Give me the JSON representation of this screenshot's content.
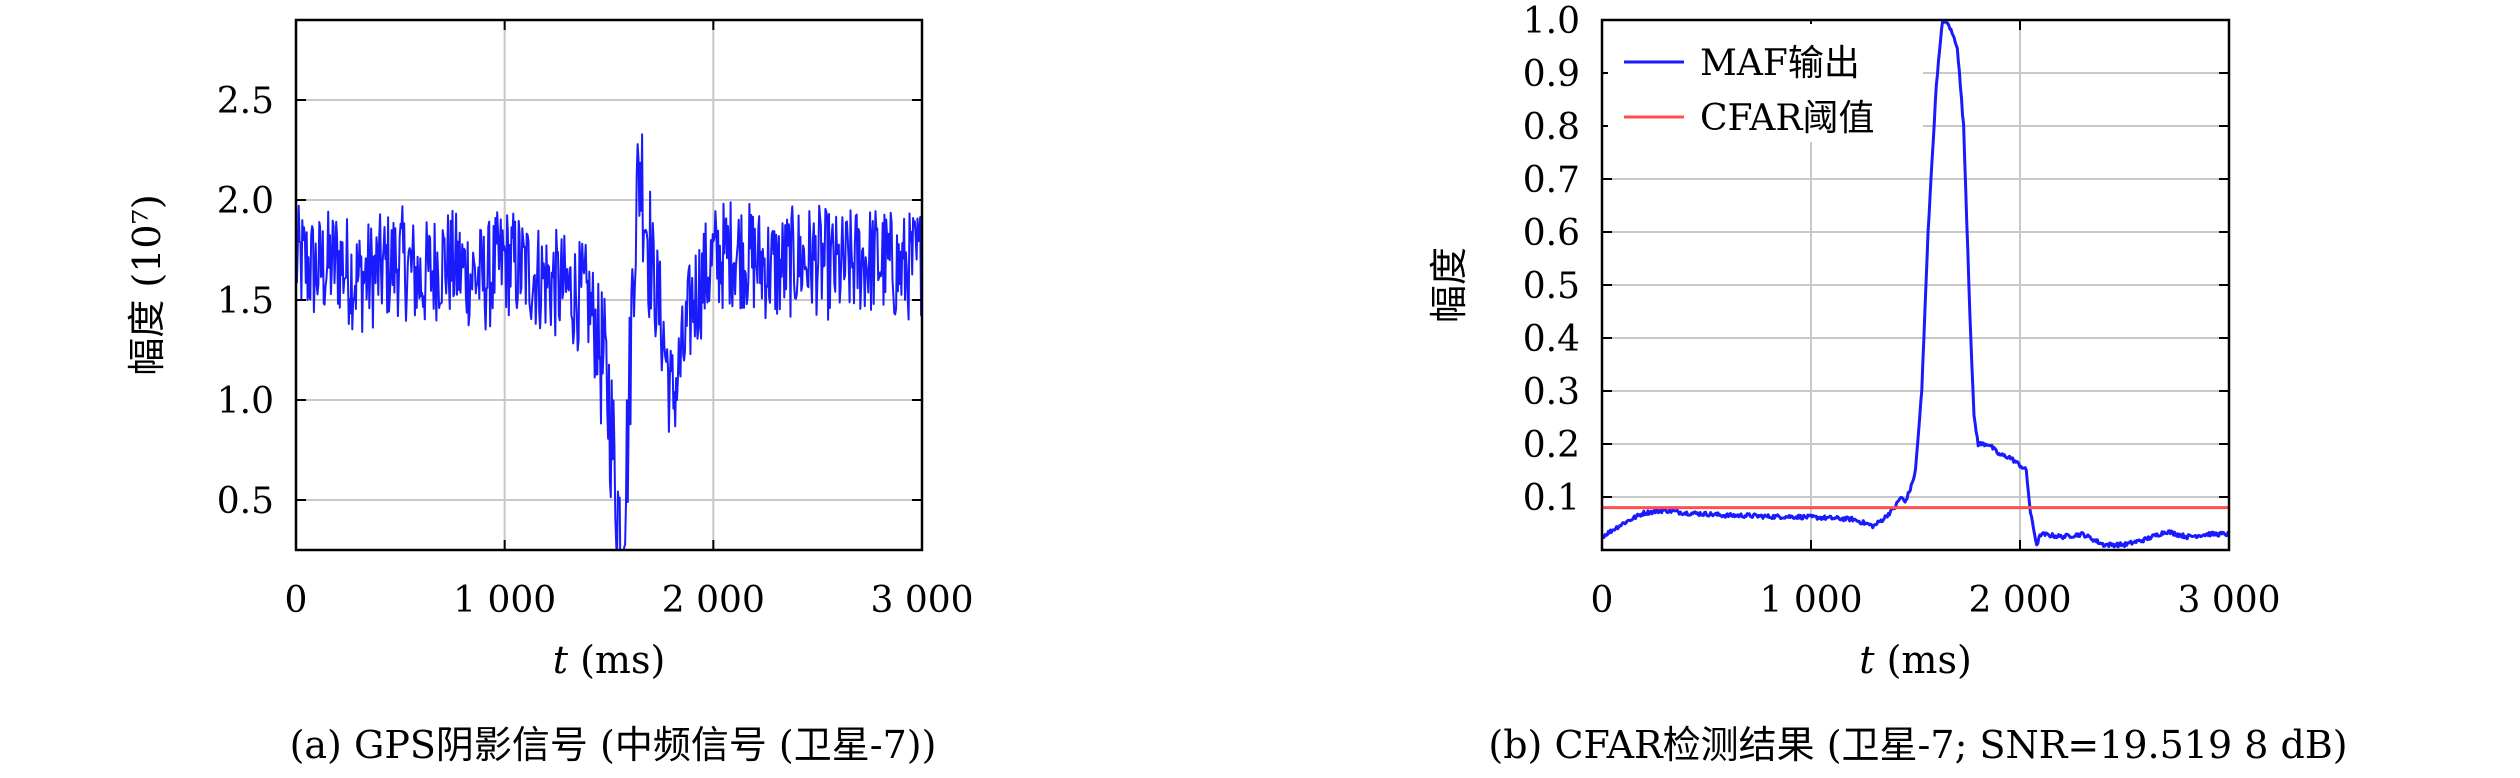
{
  "chart_data": [
    {
      "type": "line",
      "ylabel": "幅度 (10⁷)",
      "xlabel_italic": "t",
      "xlabel_unit": " (ms)",
      "xlim": [
        0,
        3000
      ],
      "ylim": [
        0.25,
        2.9
      ],
      "xticks": [
        0,
        1000,
        2000,
        3000
      ],
      "xtick_labels": [
        "0",
        "1 000",
        "2 000",
        "3 000"
      ],
      "yticks": [
        0.5,
        1.0,
        1.5,
        2.0,
        2.5
      ],
      "ytick_labels": [
        "0.5",
        "1.0",
        "1.5",
        "2.0",
        "2.5"
      ],
      "grid": true,
      "caption": "(a) GPS阴影信号 (中频信号 (卫星-7))",
      "series": [
        {
          "color": "#1a1aff",
          "x": [
            0,
            100,
            200,
            300,
            400,
            500,
            600,
            700,
            800,
            900,
            1000,
            1100,
            1200,
            1300,
            1400,
            1450,
            1500,
            1530,
            1560,
            1590,
            1620,
            1650,
            1700,
            1750,
            1800,
            1850,
            1900,
            2000,
            2100,
            2200,
            2300,
            2400,
            2500,
            2600,
            2700,
            2800,
            2900,
            3000
          ],
          "y": [
            1.7,
            1.65,
            1.7,
            1.6,
            1.65,
            1.7,
            1.6,
            1.7,
            1.65,
            1.6,
            1.7,
            1.65,
            1.6,
            1.55,
            1.5,
            1.3,
            1.0,
            0.6,
            0.3,
            0.8,
            1.8,
            2.2,
            1.7,
            1.4,
            1.0,
            1.2,
            1.5,
            1.7,
            1.75,
            1.7,
            1.65,
            1.7,
            1.7,
            1.65,
            1.7,
            1.7,
            1.65,
            1.7
          ],
          "noise_amplitude": 0.28
        }
      ]
    },
    {
      "type": "line",
      "ylabel": "幅度",
      "xlabel_italic": "t",
      "xlabel_unit": " (ms)",
      "xlim": [
        0,
        3000
      ],
      "ylim": [
        0,
        1.0
      ],
      "xticks": [
        0,
        1000,
        2000,
        3000
      ],
      "xtick_labels": [
        "0",
        "1 000",
        "2 000",
        "3 000"
      ],
      "yticks": [
        0.1,
        0.2,
        0.3,
        0.4,
        0.5,
        0.6,
        0.7,
        0.8,
        0.9,
        1.0
      ],
      "ytick_labels": [
        "0.1",
        "0.2",
        "0.3",
        "0.4",
        "0.5",
        "0.6",
        "0.7",
        "0.8",
        "0.9",
        "1.0"
      ],
      "grid": true,
      "legend": "top-left",
      "caption": "(b) CFAR检测结果 (卫星-7; SNR=19.519 8 dB)",
      "series": [
        {
          "name": "MAF输出",
          "color": "#1a1aff",
          "x": [
            0,
            100,
            200,
            300,
            400,
            500,
            600,
            700,
            800,
            900,
            1000,
            1100,
            1200,
            1300,
            1350,
            1400,
            1430,
            1450,
            1480,
            1500,
            1530,
            1560,
            1600,
            1630,
            1660,
            1700,
            1730,
            1760,
            1780,
            1800,
            1850,
            1900,
            1950,
            2000,
            2030,
            2050,
            2080,
            2100,
            2200,
            2300,
            2400,
            2500,
            2600,
            2700,
            2800,
            2900,
            3000
          ],
          "y": [
            0.025,
            0.05,
            0.07,
            0.075,
            0.07,
            0.068,
            0.065,
            0.065,
            0.063,
            0.063,
            0.062,
            0.06,
            0.058,
            0.045,
            0.06,
            0.08,
            0.1,
            0.09,
            0.12,
            0.15,
            0.3,
            0.6,
            0.88,
            1.0,
            0.99,
            0.95,
            0.8,
            0.45,
            0.25,
            0.2,
            0.2,
            0.18,
            0.175,
            0.16,
            0.15,
            0.07,
            0.01,
            0.03,
            0.025,
            0.03,
            0.01,
            0.01,
            0.02,
            0.035,
            0.025,
            0.03,
            0.03
          ]
        },
        {
          "name": "CFAR阈值",
          "color": "#ff5050",
          "x": [
            0,
            3000
          ],
          "y": [
            0.08,
            0.08
          ]
        }
      ]
    }
  ]
}
